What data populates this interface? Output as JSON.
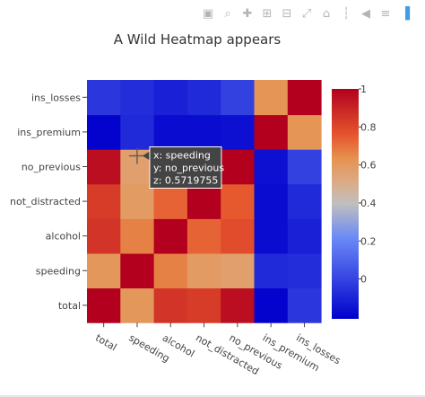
{
  "modebar": {
    "buttons": [
      {
        "name": "camera-icon",
        "glyph": "▣"
      },
      {
        "name": "zoom-icon",
        "glyph": "⌕"
      },
      {
        "name": "pan-icon",
        "glyph": "✚"
      },
      {
        "name": "zoom-in-icon",
        "glyph": "⊞"
      },
      {
        "name": "zoom-out-icon",
        "glyph": "⊟"
      },
      {
        "name": "autoscale-icon",
        "glyph": "⤢"
      },
      {
        "name": "home-icon",
        "glyph": "⌂"
      },
      {
        "name": "spike-lines-icon",
        "glyph": "┆"
      },
      {
        "name": "hover-closest-icon",
        "glyph": "◀"
      },
      {
        "name": "hover-compare-icon",
        "glyph": "≡"
      },
      {
        "name": "plotly-logo-icon",
        "glyph": "▐"
      }
    ]
  },
  "chart_data": {
    "type": "heatmap",
    "title": "A Wild Heatmap appears",
    "x": [
      "total",
      "speeding",
      "alcohol",
      "not_distracted",
      "no_previous",
      "ins_premium",
      "ins_losses"
    ],
    "y": [
      "total",
      "speeding",
      "alcohol",
      "not_distracted",
      "no_previous",
      "ins_premium",
      "ins_losses"
    ],
    "z": [
      [
        1.0,
        0.61,
        0.85,
        0.83,
        0.96,
        -0.2,
        -0.04
      ],
      [
        0.61,
        1.0,
        0.67,
        0.59,
        0.57,
        -0.08,
        -0.07
      ],
      [
        0.85,
        0.67,
        1.0,
        0.73,
        0.78,
        -0.17,
        -0.11
      ],
      [
        0.83,
        0.59,
        0.73,
        1.0,
        0.75,
        -0.17,
        -0.08
      ],
      [
        0.96,
        0.57,
        0.78,
        0.75,
        1.0,
        -0.16,
        -0.01
      ],
      [
        -0.2,
        -0.08,
        -0.17,
        -0.17,
        -0.16,
        1.0,
        0.62
      ],
      [
        -0.04,
        -0.07,
        -0.11,
        -0.08,
        -0.01,
        0.62,
        1.0
      ]
    ],
    "zmin": -0.21,
    "zmax": 1.0,
    "colorscale": [
      [
        0.0,
        "#0000cc"
      ],
      [
        0.35,
        "#6a89f7"
      ],
      [
        0.5,
        "#bfbfbf"
      ],
      [
        0.6,
        "#dcaa84"
      ],
      [
        0.7,
        "#e6914e"
      ],
      [
        0.8,
        "#e6552d"
      ],
      [
        1.0,
        "#b2001e"
      ]
    ],
    "colorbar": {
      "ticks": [
        0,
        0.2,
        0.4,
        0.6,
        0.8,
        1
      ],
      "tick_labels": [
        "0",
        "0.2",
        "0.4",
        "0.6",
        "0.8",
        "1"
      ]
    },
    "hover": {
      "x": "speeding",
      "y": "no_previous",
      "z": "0.5719755"
    }
  }
}
